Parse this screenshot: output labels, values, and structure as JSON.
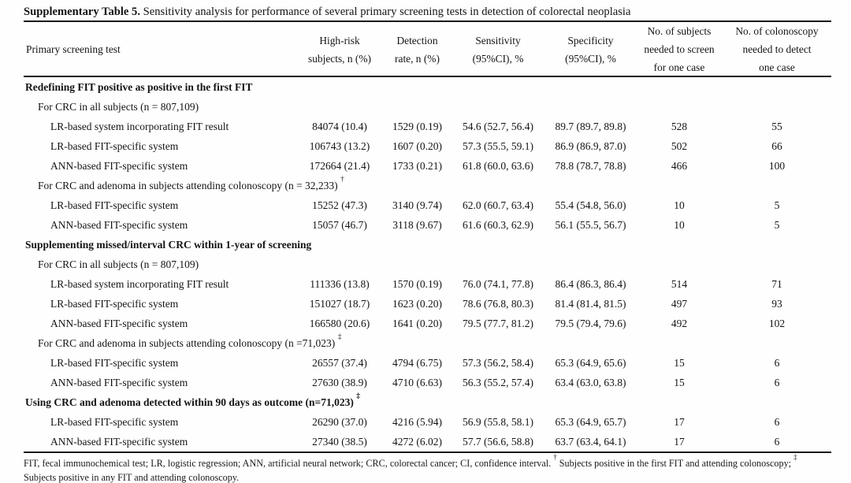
{
  "title": {
    "label": "Supplementary Table 5.",
    "text": " Sensitivity analysis for performance of several primary screening tests in detection of colorectal neoplasia"
  },
  "table": {
    "columns": [
      {
        "lines": [
          "Primary screening test"
        ]
      },
      {
        "lines": [
          "High-risk",
          "subjects, n (%)"
        ]
      },
      {
        "lines": [
          "Detection",
          "rate, n (%)"
        ]
      },
      {
        "lines": [
          "Sensitivity",
          "(95%CI), %"
        ]
      },
      {
        "lines": [
          "Specificity",
          "(95%CI), %"
        ]
      },
      {
        "lines": [
          "No. of subjects",
          "needed to screen",
          "for one case"
        ]
      },
      {
        "lines": [
          "No. of colonoscopy",
          "needed to detect",
          "one case"
        ]
      }
    ],
    "rows": [
      {
        "type": "section",
        "label": "Redefining FIT positive as positive in the first FIT"
      },
      {
        "type": "subsection",
        "label": "For CRC in all subjects (n = 807,109)"
      },
      {
        "type": "data",
        "label": "LR-based system incorporating FIT result",
        "values": [
          "84074 (10.4)",
          "1529 (0.19)",
          "54.6 (52.7, 56.4)",
          "89.7 (89.7, 89.8)",
          "528",
          "55"
        ]
      },
      {
        "type": "data",
        "label": "LR-based FIT-specific system",
        "values": [
          "106743 (13.2)",
          "1607 (0.20)",
          "57.3 (55.5, 59.1)",
          "86.9 (86.9, 87.0)",
          "502",
          "66"
        ]
      },
      {
        "type": "data",
        "label": "ANN-based FIT-specific system",
        "values": [
          "172664 (21.4)",
          "1733 (0.21)",
          "61.8 (60.0, 63.6)",
          "78.8 (78.7, 78.8)",
          "466",
          "100"
        ]
      },
      {
        "type": "subsection",
        "label": "For CRC and adenoma in subjects attending colonoscopy (n = 32,233)",
        "sup": "†"
      },
      {
        "type": "data",
        "label": "LR-based FIT-specific system",
        "values": [
          "15252 (47.3)",
          "3140 (9.74)",
          "62.0 (60.7, 63.4)",
          "55.4 (54.8, 56.0)",
          "10",
          "5"
        ]
      },
      {
        "type": "data",
        "label": "ANN-based FIT-specific system",
        "values": [
          "15057 (46.7)",
          "3118 (9.67)",
          "61.6 (60.3, 62.9)",
          "56.1 (55.5, 56.7)",
          "10",
          "5"
        ]
      },
      {
        "type": "section",
        "label": "Supplementing missed/interval CRC within 1-year of screening"
      },
      {
        "type": "subsection",
        "label": "For CRC in all subjects (n = 807,109)"
      },
      {
        "type": "data",
        "label": "LR-based system incorporating FIT result",
        "values": [
          "111336 (13.8)",
          "1570 (0.19)",
          "76.0 (74.1, 77.8)",
          "86.4 (86.3, 86.4)",
          "514",
          "71"
        ]
      },
      {
        "type": "data",
        "label": "LR-based FIT-specific system",
        "values": [
          "151027 (18.7)",
          "1623 (0.20)",
          "78.6 (76.8, 80.3)",
          "81.4 (81.4, 81.5)",
          "497",
          "93"
        ]
      },
      {
        "type": "data",
        "label": "ANN-based FIT-specific system",
        "values": [
          "166580 (20.6)",
          "1641 (0.20)",
          "79.5 (77.7, 81.2)",
          "79.5 (79.4, 79.6)",
          "492",
          "102"
        ]
      },
      {
        "type": "subsection",
        "label": "For CRC and adenoma in subjects attending colonoscopy (n =71,023)",
        "sup": "‡"
      },
      {
        "type": "data",
        "label": "LR-based FIT-specific system",
        "values": [
          "26557 (37.4)",
          "4794 (6.75)",
          "57.3 (56.2, 58.4)",
          "65.3 (64.9, 65.6)",
          "15",
          "6"
        ]
      },
      {
        "type": "data",
        "label": "ANN-based FIT-specific system",
        "values": [
          "27630 (38.9)",
          "4710 (6.63)",
          "56.3 (55.2, 57.4)",
          "63.4 (63.0, 63.8)",
          "15",
          "6"
        ]
      },
      {
        "type": "section",
        "label": "Using CRC and adenoma detected within 90 days as outcome (n=71,023)",
        "sup": "‡"
      },
      {
        "type": "data",
        "label": "LR-based FIT-specific system",
        "values": [
          "26290 (37.0)",
          "4216 (5.94)",
          "56.9 (55.8, 58.1)",
          "65.3 (64.9, 65.7)",
          "17",
          "6"
        ]
      },
      {
        "type": "data",
        "label": "ANN-based FIT-specific system",
        "values": [
          "27340 (38.5)",
          "4272 (6.02)",
          "57.7 (56.6, 58.8)",
          "63.7 (63.4, 64.1)",
          "17",
          "6"
        ]
      }
    ]
  },
  "footnote": {
    "segments": [
      {
        "text": "FIT, fecal immunochemical test; LR, logistic regression; ANN, artificial neural network; CRC, colorectal cancer; CI, confidence interval. "
      },
      {
        "sup": "†"
      },
      {
        "text": " Subjects positive in the first FIT and attending colonoscopy; "
      },
      {
        "sup": "‡"
      },
      {
        "text": " Subjects positive in any FIT and attending colonoscopy."
      }
    ]
  }
}
